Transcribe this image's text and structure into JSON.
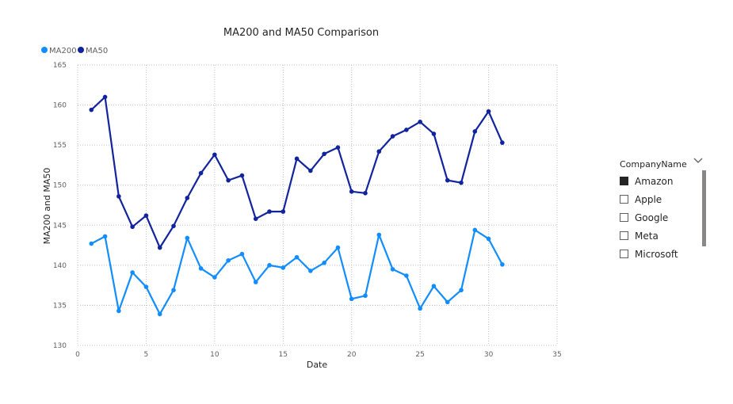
{
  "chart_data": {
    "type": "line",
    "title": "MA200 and MA50 Comparison",
    "xlabel": "Date",
    "ylabel": "MA200 and MA50",
    "xlim": [
      0,
      35
    ],
    "ylim": [
      130,
      165
    ],
    "xticks": [
      0,
      5,
      10,
      15,
      20,
      25,
      30,
      35
    ],
    "yticks": [
      130,
      135,
      140,
      145,
      150,
      155,
      160,
      165
    ],
    "grid": true,
    "legend_position": "top-left",
    "x": [
      1,
      2,
      3,
      4,
      5,
      6,
      7,
      8,
      9,
      10,
      11,
      12,
      13,
      14,
      15,
      16,
      17,
      18,
      19,
      20,
      21,
      22,
      23,
      24,
      25,
      26,
      27,
      28,
      29,
      30,
      31
    ],
    "series": [
      {
        "name": "MA200",
        "color": "#118dff",
        "values": [
          142.7,
          143.6,
          134.3,
          139.1,
          137.3,
          133.9,
          136.9,
          143.4,
          139.6,
          138.5,
          140.6,
          141.4,
          137.9,
          140.0,
          139.7,
          141.0,
          139.3,
          140.3,
          142.2,
          135.8,
          136.2,
          143.8,
          139.5,
          138.7,
          134.6,
          137.4,
          135.4,
          136.9,
          144.4,
          143.3,
          140.1
        ]
      },
      {
        "name": "MA50",
        "color": "#12239e",
        "values": [
          159.4,
          161.0,
          148.6,
          144.8,
          146.2,
          142.2,
          144.9,
          148.4,
          151.5,
          153.8,
          150.6,
          151.2,
          145.8,
          146.7,
          146.7,
          153.3,
          151.8,
          153.9,
          154.7,
          149.2,
          149.0,
          154.2,
          156.1,
          156.9,
          157.9,
          156.4,
          150.6,
          150.3,
          156.7,
          159.2,
          155.3
        ]
      }
    ]
  },
  "slicer": {
    "title": "CompanyName",
    "chevron_icon": "chevron-down-icon",
    "items": [
      {
        "label": "Amazon",
        "selected": true
      },
      {
        "label": "Apple",
        "selected": false
      },
      {
        "label": "Google",
        "selected": false
      },
      {
        "label": "Meta",
        "selected": false
      },
      {
        "label": "Microsoft",
        "selected": false
      }
    ]
  }
}
